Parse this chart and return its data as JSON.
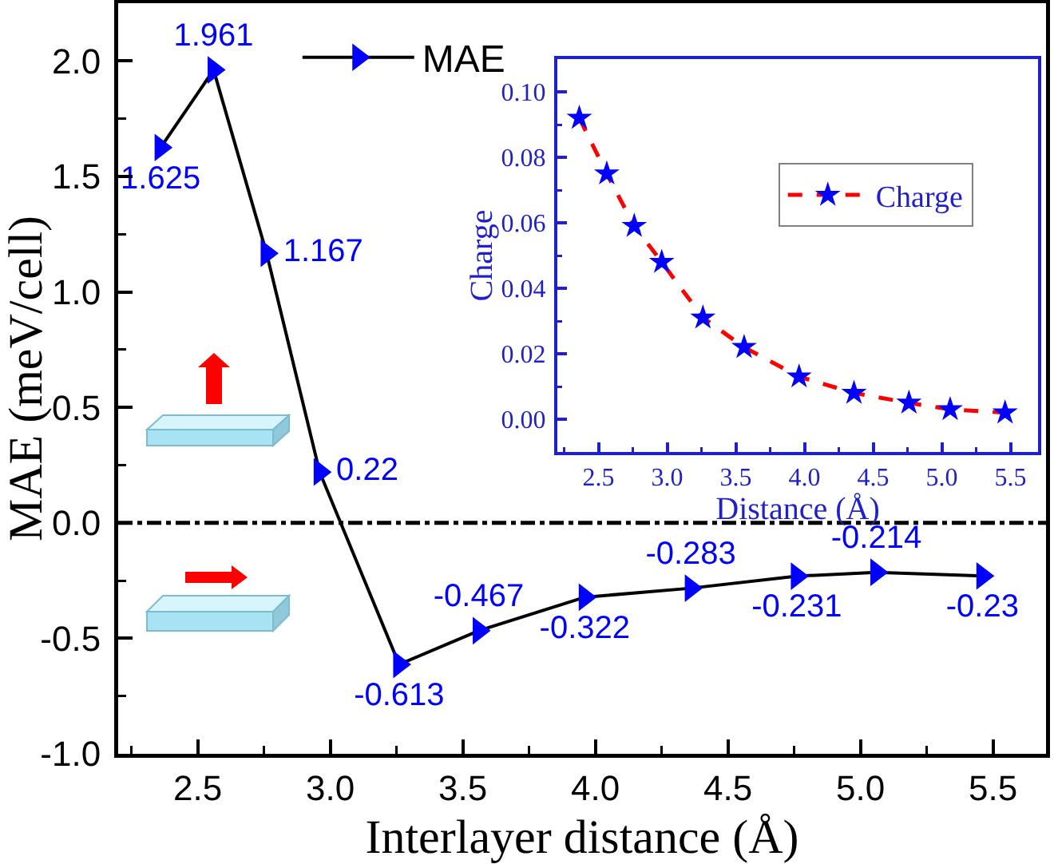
{
  "chart_data": [
    {
      "type": "line",
      "xlabel": "Interlayer distance (Å)",
      "ylabel": "MAE (meV/cell)",
      "x": [
        2.36,
        2.56,
        2.76,
        2.96,
        3.26,
        3.56,
        3.96,
        4.36,
        4.76,
        5.06,
        5.46
      ],
      "series": [
        {
          "name": "MAE",
          "color": "#000000",
          "colors": [
            "#0000ff",
            "#0000ff",
            "#0000ff",
            "#0000ff",
            "#0000ff",
            "#0000ff",
            "#0000ff",
            "#0000ff",
            "#0000ff",
            "#0000ff",
            "#0000ff"
          ],
          "values": [
            1.625,
            1.961,
            1.167,
            0.22,
            -0.613,
            -0.467,
            -0.322,
            -0.283,
            -0.231,
            -0.214,
            -0.23
          ]
        }
      ],
      "xlim": [
        2.2,
        5.7
      ],
      "xticks": [
        {
          "value": 2.25,
          "label": null
        },
        2.5,
        {
          "value": 2.75,
          "label": null
        },
        {
          "value": 3,
          "label": "3.0"
        },
        {
          "value": 3.25,
          "label": null
        },
        3.5,
        {
          "value": 3.75,
          "label": null
        },
        {
          "value": 4,
          "label": "4.0"
        },
        {
          "value": 4.25,
          "label": null
        },
        4.5,
        {
          "value": 4.75,
          "label": null
        },
        {
          "value": 5,
          "label": "5.0"
        },
        {
          "value": 5.25,
          "label": null
        },
        5.5
      ],
      "ylim": [
        -1,
        2.25
      ],
      "yticks": [
        {
          "value": -1,
          "label": "-1.0"
        },
        {
          "value": -0.75,
          "label": null
        },
        -0.5,
        {
          "value": -0.25,
          "label": null
        },
        {
          "value": 0,
          "label": "0.0"
        },
        {
          "value": 0.25,
          "label": null
        },
        0.5,
        {
          "value": 0.75,
          "label": null
        },
        {
          "value": 1,
          "label": "1.0"
        },
        {
          "value": 1.25,
          "label": null
        },
        1.5,
        {
          "value": 1.75,
          "label": null
        },
        {
          "value": 2,
          "label": "2.0"
        }
      ],
      "ref_lines": [
        {
          "axis": "y",
          "value": 0,
          "color": "#000000",
          "line_style": "dashdot"
        }
      ],
      "data_labels": true,
      "legend": "top",
      "grid": false,
      "marker": "triangle",
      "line_style": "solid"
    },
    {
      "type": "line",
      "xlabel": "Distance (Å)",
      "ylabel": "Charge",
      "x": [
        2.36,
        2.56,
        2.76,
        2.96,
        3.26,
        3.56,
        3.96,
        4.36,
        4.76,
        5.06,
        5.46
      ],
      "series": [
        {
          "name": "Charge",
          "color": "#ff0000",
          "colors": [
            "#0000ff",
            "#0000ff",
            "#0000ff",
            "#0000ff",
            "#0000ff",
            "#0000ff",
            "#0000ff",
            "#0000ff",
            "#0000ff",
            "#0000ff",
            "#0000ff"
          ],
          "values": [
            0.092,
            0.075,
            0.059,
            0.048,
            0.031,
            0.022,
            0.013,
            0.008,
            0.005,
            0.003,
            0.002
          ]
        }
      ],
      "xlim": [
        2.2,
        5.7
      ],
      "xticks": [
        {
          "value": 2.25,
          "label": null
        },
        2.5,
        {
          "value": 2.75,
          "label": null
        },
        {
          "value": 3,
          "label": "3.0"
        },
        {
          "value": 3.25,
          "label": null
        },
        3.5,
        {
          "value": 3.75,
          "label": null
        },
        {
          "value": 4,
          "label": "4.0"
        },
        {
          "value": 4.25,
          "label": null
        },
        4.5,
        {
          "value": 4.75,
          "label": null
        },
        {
          "value": 5,
          "label": "5.0"
        },
        {
          "value": 5.25,
          "label": null
        },
        5.5
      ],
      "ylim": [
        -0.01,
        0.11
      ],
      "yticks": [
        {
          "value": 0,
          "label": "0.00"
        },
        {
          "value": 0.01,
          "label": null
        },
        {
          "value": 0.02,
          "label": "0.02"
        },
        {
          "value": 0.03,
          "label": null
        },
        {
          "value": 0.04,
          "label": "0.04"
        },
        {
          "value": 0.05,
          "label": null
        },
        {
          "value": 0.06,
          "label": "0.06"
        },
        {
          "value": 0.07,
          "label": null
        },
        {
          "value": 0.08,
          "label": "0.08"
        },
        {
          "value": 0.09,
          "label": null
        },
        {
          "value": 0.1,
          "label": "0.10"
        }
      ],
      "legend": "top right",
      "grid": false,
      "marker": "star",
      "line_style": "dashed"
    }
  ]
}
